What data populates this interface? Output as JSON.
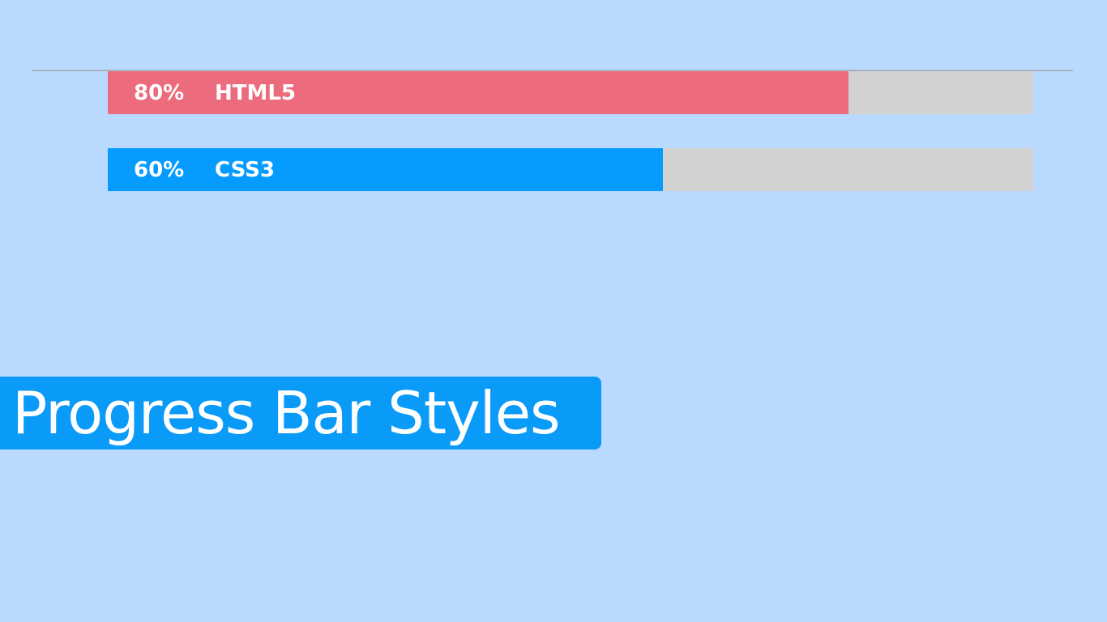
{
  "progress_bars": [
    {
      "percent_label": "80%",
      "label": "HTML5",
      "value": 0.8,
      "color": "#ec6b7c"
    },
    {
      "percent_label": "60%",
      "label": "CSS3",
      "value": 0.6,
      "color": "#069cff"
    }
  ],
  "banner": {
    "title": "Progress Bar Styles"
  }
}
